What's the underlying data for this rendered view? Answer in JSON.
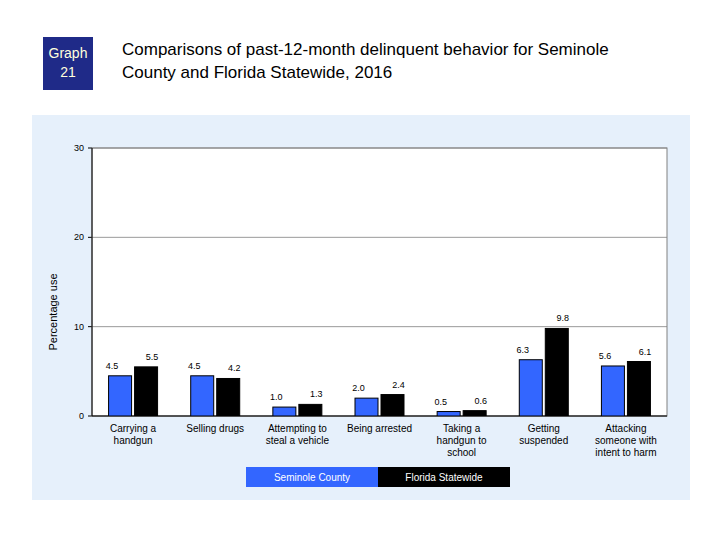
{
  "chart_data": {
    "type": "bar",
    "title": "Comparisons of past-12-month delinquent behavior for Seminole County and Florida Statewide, 2016",
    "annotations": [
      "Graph 21"
    ],
    "y_label": "Percentage use",
    "categories": [
      "Carrying a handgun",
      "Selling drugs",
      "Attempting to steal a vehicle",
      "Being arrested",
      "Taking a handgun to school",
      "Getting suspended",
      "Attacking someone with intent to harm"
    ],
    "series": [
      {
        "name": "Seminole County",
        "color": "#3366ff",
        "values": [
          4.5,
          4.5,
          1.0,
          2.0,
          0.5,
          6.3,
          5.6
        ],
        "value_labels": [
          "4.5",
          "4.5",
          "1.0",
          "2.0",
          "0.5",
          "6.3",
          "5.6"
        ]
      },
      {
        "name": "Florida Statewide",
        "color": "#000000",
        "values": [
          5.5,
          4.2,
          1.3,
          2.4,
          0.6,
          9.8,
          6.1
        ],
        "value_labels": [
          "5.5",
          "4.2",
          "1.3",
          "2.4",
          "0.6",
          "9.8",
          "6.1"
        ]
      }
    ],
    "ylim": [
      0,
      30
    ],
    "yticks": [
      0,
      10,
      20,
      30
    ],
    "grid": true,
    "legend": "bottom",
    "data_labels": true
  }
}
